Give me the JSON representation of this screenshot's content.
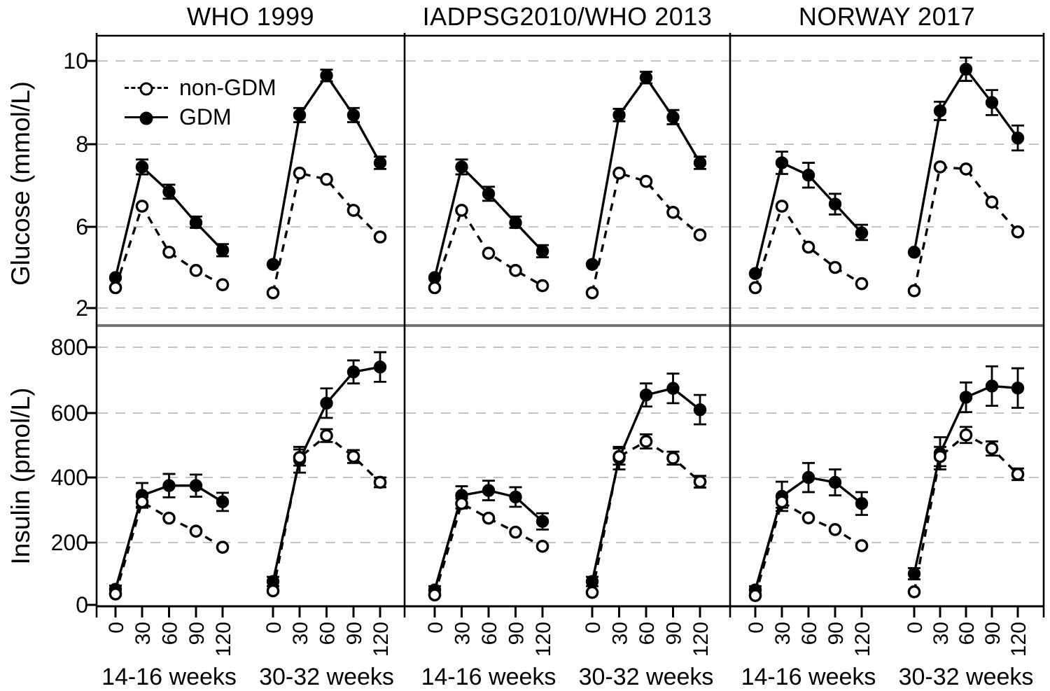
{
  "figure": {
    "colors": {
      "foreground": "#000000",
      "grid": "#c4c4c4",
      "divider": "#757575",
      "background": "#ffffff"
    },
    "columns": [
      {
        "title": "WHO 1999"
      },
      {
        "title": "IADPSG2010/WHO 2013"
      },
      {
        "title": "NORWAY 2017"
      }
    ],
    "rows": [
      {
        "axis_label": "Glucose (mmol/L)",
        "tick_labels": [
          "10",
          "8",
          "6",
          "2"
        ],
        "tick_values": [
          10,
          8,
          6,
          2
        ]
      },
      {
        "axis_label": "Insulin (pmol/L)",
        "tick_labels": [
          "800",
          "600",
          "400",
          "200",
          "0"
        ],
        "tick_values": [
          800,
          600,
          400,
          200,
          0
        ]
      }
    ],
    "legend": {
      "items": [
        {
          "label": "non-GDM",
          "marker": "open-circle",
          "line": "dashed"
        },
        {
          "label": "GDM",
          "marker": "filled-circle",
          "line": "solid"
        }
      ]
    },
    "x_axis": {
      "time_tick_labels": [
        "0",
        "30",
        "60",
        "90",
        "120"
      ],
      "cluster_labels": [
        "14-16 weeks",
        "30-32 weeks"
      ]
    }
  },
  "chart_data": [
    {
      "type": "line",
      "id": "glucose-who-1999",
      "row": 0,
      "col": 0,
      "measure": "Glucose (mmol/L)",
      "criteria": "WHO 1999",
      "x_minutes": [
        0,
        30,
        60,
        90,
        120
      ],
      "clusters": [
        {
          "label": "14-16 weeks",
          "series": [
            {
              "name": "GDM",
              "marker": "filled-circle",
              "line": "solid",
              "values": [
                3.5,
                7.45,
                6.85,
                6.1,
                4.85
              ],
              "se": [
                0,
                0.18,
                0.17,
                0.15,
                0.3
              ]
            },
            {
              "name": "non-GDM",
              "marker": "open-circle",
              "line": "dashed",
              "values": [
                3.0,
                6.5,
                4.75,
                3.85,
                3.15
              ],
              "se": [
                0,
                0,
                0,
                0,
                0
              ]
            }
          ]
        },
        {
          "label": "30-32 weeks",
          "series": [
            {
              "name": "GDM",
              "marker": "filled-circle",
              "line": "solid",
              "values": [
                4.15,
                8.7,
                9.65,
                8.7,
                7.55
              ],
              "se": [
                0,
                0.17,
                0.14,
                0.17,
                0.15
              ]
            },
            {
              "name": "non-GDM",
              "marker": "open-circle",
              "line": "dashed",
              "values": [
                2.75,
                7.3,
                7.15,
                6.4,
                5.5
              ],
              "se": [
                0,
                0,
                0,
                0,
                0
              ]
            }
          ]
        }
      ]
    },
    {
      "type": "line",
      "id": "glucose-iadpsg2010-who-2013",
      "row": 0,
      "col": 1,
      "measure": "Glucose (mmol/L)",
      "criteria": "IADPSG2010/WHO 2013",
      "x_minutes": [
        0,
        30,
        60,
        90,
        120
      ],
      "clusters": [
        {
          "label": "14-16 weeks",
          "series": [
            {
              "name": "GDM",
              "marker": "filled-circle",
              "line": "solid",
              "values": [
                3.5,
                7.45,
                6.8,
                6.1,
                4.8
              ],
              "se": [
                0,
                0.18,
                0.17,
                0.15,
                0.3
              ]
            },
            {
              "name": "non-GDM",
              "marker": "open-circle",
              "line": "dashed",
              "values": [
                3.0,
                6.4,
                4.7,
                3.85,
                3.1
              ],
              "se": [
                0,
                0,
                0,
                0,
                0
              ]
            }
          ]
        },
        {
          "label": "30-32 weeks",
          "series": [
            {
              "name": "GDM",
              "marker": "filled-circle",
              "line": "solid",
              "values": [
                4.15,
                8.7,
                9.6,
                8.65,
                7.55
              ],
              "se": [
                0,
                0.15,
                0.14,
                0.17,
                0.15
              ]
            },
            {
              "name": "non-GDM",
              "marker": "open-circle",
              "line": "dashed",
              "values": [
                2.75,
                7.3,
                7.1,
                6.35,
                5.6
              ],
              "se": [
                0,
                0,
                0,
                0,
                0
              ]
            }
          ]
        }
      ]
    },
    {
      "type": "line",
      "id": "glucose-norway-2017",
      "row": 0,
      "col": 2,
      "measure": "Glucose (mmol/L)",
      "criteria": "NORWAY 2017",
      "x_minutes": [
        0,
        30,
        60,
        90,
        120
      ],
      "clusters": [
        {
          "label": "14-16 weeks",
          "series": [
            {
              "name": "GDM",
              "marker": "filled-circle",
              "line": "solid",
              "values": [
                3.7,
                7.55,
                7.25,
                6.55,
                5.7
              ],
              "se": [
                0,
                0.27,
                0.3,
                0.25,
                0.35
              ]
            },
            {
              "name": "non-GDM",
              "marker": "open-circle",
              "line": "dashed",
              "values": [
                3.0,
                6.5,
                5.0,
                4.0,
                3.2
              ],
              "se": [
                0,
                0,
                0,
                0,
                0
              ]
            }
          ]
        },
        {
          "label": "30-32 weeks",
          "series": [
            {
              "name": "GDM",
              "marker": "filled-circle",
              "line": "solid",
              "values": [
                4.75,
                8.8,
                9.8,
                9.0,
                8.15
              ],
              "se": [
                0,
                0.22,
                0.28,
                0.3,
                0.3
              ]
            },
            {
              "name": "non-GDM",
              "marker": "open-circle",
              "line": "dashed",
              "values": [
                2.85,
                7.45,
                7.4,
                6.6,
                5.75
              ],
              "se": [
                0,
                0,
                0,
                0,
                0
              ]
            }
          ]
        }
      ]
    },
    {
      "type": "line",
      "id": "insulin-who-1999",
      "row": 1,
      "col": 0,
      "measure": "Insulin (pmol/L)",
      "criteria": "WHO 1999",
      "x_minutes": [
        0,
        30,
        60,
        90,
        120
      ],
      "clusters": [
        {
          "label": "14-16 weeks",
          "series": [
            {
              "name": "GDM",
              "marker": "filled-circle",
              "line": "solid",
              "values": [
                50,
                345,
                375,
                375,
                325
              ],
              "se": [
                12,
                38,
                36,
                34,
                28
              ]
            },
            {
              "name": "non-GDM",
              "marker": "open-circle",
              "line": "dashed",
              "values": [
                35,
                325,
                275,
                235,
                185
              ],
              "se": [
                0,
                15,
                0,
                0,
                0
              ]
            }
          ]
        },
        {
          "label": "30-32 weeks",
          "series": [
            {
              "name": "GDM",
              "marker": "filled-circle",
              "line": "solid",
              "values": [
                75,
                455,
                630,
                725,
                740
              ],
              "se": [
                15,
                40,
                45,
                35,
                45
              ]
            },
            {
              "name": "non-GDM",
              "marker": "open-circle",
              "line": "dashed",
              "values": [
                45,
                462,
                530,
                465,
                385
              ],
              "se": [
                0,
                25,
                20,
                20,
                15
              ]
            }
          ]
        }
      ]
    },
    {
      "type": "line",
      "id": "insulin-iadpsg2010-who-2013",
      "row": 1,
      "col": 1,
      "measure": "Insulin (pmol/L)",
      "criteria": "IADPSG2010/WHO 2013",
      "x_minutes": [
        0,
        30,
        60,
        90,
        120
      ],
      "clusters": [
        {
          "label": "14-16 weeks",
          "series": [
            {
              "name": "GDM",
              "marker": "filled-circle",
              "line": "solid",
              "values": [
                48,
                345,
                360,
                340,
                265
              ],
              "se": [
                12,
                28,
                30,
                30,
                25
              ]
            },
            {
              "name": "non-GDM",
              "marker": "open-circle",
              "line": "dashed",
              "values": [
                32,
                320,
                275,
                232,
                188
              ],
              "se": [
                0,
                15,
                0,
                0,
                0
              ]
            }
          ]
        },
        {
          "label": "30-32 weeks",
          "series": [
            {
              "name": "GDM",
              "marker": "filled-circle",
              "line": "solid",
              "values": [
                75,
                460,
                655,
                675,
                610
              ],
              "se": [
                15,
                35,
                35,
                45,
                45
              ]
            },
            {
              "name": "non-GDM",
              "marker": "open-circle",
              "line": "dashed",
              "values": [
                40,
                465,
                512,
                460,
                387
              ],
              "se": [
                0,
                25,
                22,
                20,
                18
              ]
            }
          ]
        }
      ]
    },
    {
      "type": "line",
      "id": "insulin-norway-2017",
      "row": 1,
      "col": 2,
      "measure": "Insulin (pmol/L)",
      "criteria": "NORWAY 2017",
      "x_minutes": [
        0,
        30,
        60,
        90,
        120
      ],
      "clusters": [
        {
          "label": "14-16 weeks",
          "series": [
            {
              "name": "GDM",
              "marker": "filled-circle",
              "line": "solid",
              "values": [
                48,
                342,
                400,
                385,
                320
              ],
              "se": [
                12,
                45,
                45,
                40,
                35
              ]
            },
            {
              "name": "non-GDM",
              "marker": "open-circle",
              "line": "dashed",
              "values": [
                30,
                325,
                276,
                240,
                190
              ],
              "se": [
                0,
                18,
                0,
                0,
                0
              ]
            }
          ]
        },
        {
          "label": "30-32 weeks",
          "series": [
            {
              "name": "GDM",
              "marker": "filled-circle",
              "line": "solid",
              "values": [
                100,
                475,
                648,
                682,
                676
              ],
              "se": [
                18,
                50,
                45,
                60,
                60
              ]
            },
            {
              "name": "non-GDM",
              "marker": "open-circle",
              "line": "dashed",
              "values": [
                42,
                465,
                532,
                490,
                410
              ],
              "se": [
                0,
                30,
                25,
                22,
                18
              ]
            }
          ]
        }
      ]
    }
  ]
}
